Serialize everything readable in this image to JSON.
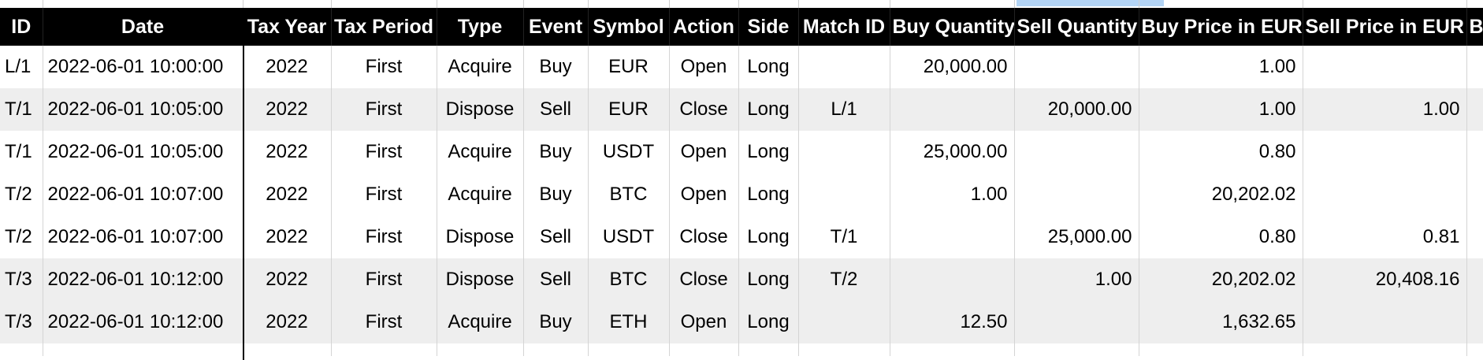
{
  "sheet": {
    "columns": [
      "ID",
      "Date",
      "Tax Year",
      "Tax Period",
      "Type",
      "Event",
      "Symbol",
      "Action",
      "Side",
      "Match ID",
      "Buy Quantity",
      "Sell Quantity",
      "Buy Price in EUR",
      "Sell Price in EUR",
      "B"
    ],
    "rows": [
      [
        "L/1",
        "2022-06-01 10:00:00",
        "2022",
        "First",
        "Acquire",
        "Buy",
        "EUR",
        "Open",
        "Long",
        "",
        "20,000.00",
        "",
        "1.00",
        "",
        ""
      ],
      [
        "T/1",
        "2022-06-01 10:05:00",
        "2022",
        "First",
        "Dispose",
        "Sell",
        "EUR",
        "Close",
        "Long",
        "L/1",
        "",
        "20,000.00",
        "1.00",
        "1.00",
        ""
      ],
      [
        "T/1",
        "2022-06-01 10:05:00",
        "2022",
        "First",
        "Acquire",
        "Buy",
        "USDT",
        "Open",
        "Long",
        "",
        "25,000.00",
        "",
        "0.80",
        "",
        ""
      ],
      [
        "T/2",
        "2022-06-01 10:07:00",
        "2022",
        "First",
        "Acquire",
        "Buy",
        "BTC",
        "Open",
        "Long",
        "",
        "1.00",
        "",
        "20,202.02",
        "",
        ""
      ],
      [
        "T/2",
        "2022-06-01 10:07:00",
        "2022",
        "First",
        "Dispose",
        "Sell",
        "USDT",
        "Close",
        "Long",
        "T/1",
        "",
        "25,000.00",
        "0.80",
        "0.81",
        ""
      ],
      [
        "T/3",
        "2022-06-01 10:12:00",
        "2022",
        "First",
        "Dispose",
        "Sell",
        "BTC",
        "Close",
        "Long",
        "T/2",
        "",
        "1.00",
        "20,202.02",
        "20,408.16",
        ""
      ],
      [
        "T/3",
        "2022-06-01 10:12:00",
        "2022",
        "First",
        "Acquire",
        "Buy",
        "ETH",
        "Open",
        "Long",
        "",
        "12.50",
        "",
        "1,632.65",
        "",
        ""
      ]
    ]
  },
  "colors": {
    "header_bg": "#000000",
    "header_fg": "#ffffff",
    "band_bg": "#eeeeee",
    "selection": "#b3d4f5"
  }
}
